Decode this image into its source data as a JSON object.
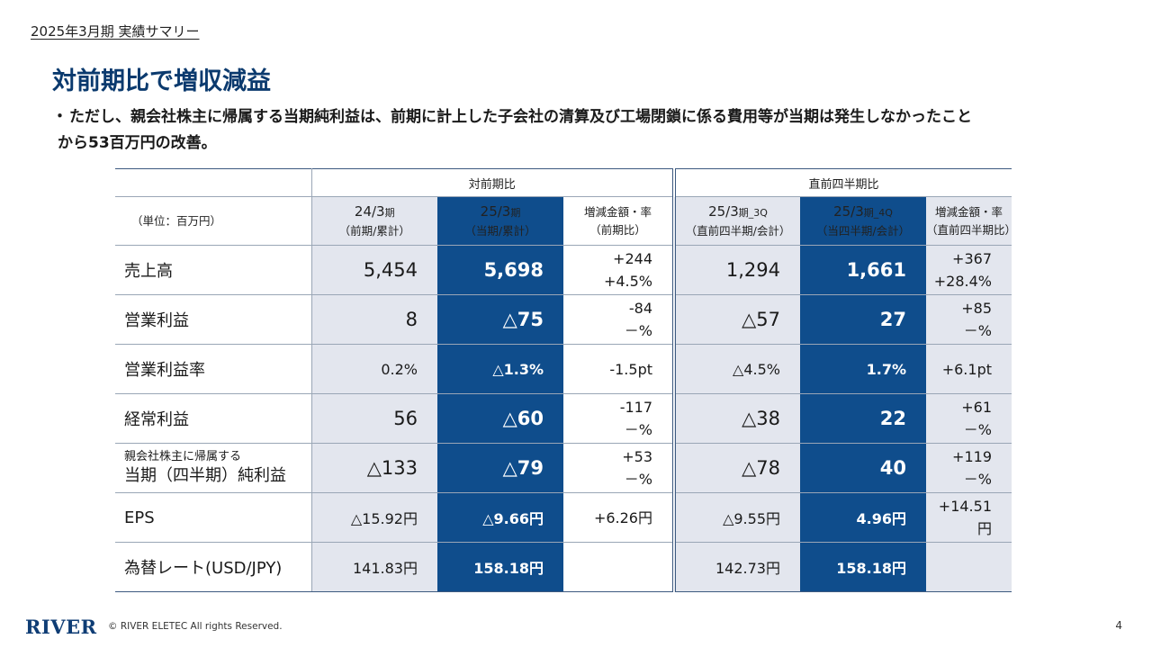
{
  "breadcrumb": "2025年3月期 実績サマリー",
  "title": "対前期比で増収減益",
  "bullet": {
    "dot": "・",
    "line1": "ただし、親会社株主に帰属する当期純利益は、前期に計上した子会社の清算及び工場閉鎖に係る費用等が当期は発生しなかったこと",
    "line2": "から53百万円の改善。"
  },
  "table": {
    "groups": {
      "yoy": "対前期比",
      "qoq": "直前四半期比"
    },
    "unit": "（単位：百万円）",
    "headers": [
      {
        "main": "24/3",
        "suffix": "期",
        "sub": "（前期/累計）"
      },
      {
        "main": "25/3",
        "suffix": "期",
        "sub": "（当期/累計）"
      },
      {
        "main": "増減金額・率",
        "suffix": "",
        "sub": "（前期比）"
      },
      {
        "main": "25/3",
        "suffix": "期_3Q",
        "sub": "（直前四半期/会計）"
      },
      {
        "main": "25/3",
        "suffix": "期_4Q",
        "sub": "（当四半期/会計）"
      },
      {
        "main": "増減金額・率",
        "suffix": "",
        "sub": "（直前四半期比）"
      }
    ],
    "rows": [
      {
        "label": "売上高",
        "prev": "5,454",
        "curr": "5,698",
        "yoy_amt": "+244",
        "yoy_rate": "+4.5%",
        "q3": "1,294",
        "q4": "1,661",
        "qoq_amt": "+367",
        "qoq_rate": "+28.4%"
      },
      {
        "label": "営業利益",
        "prev": "8",
        "curr": "△75",
        "yoy_amt": "-84",
        "yoy_rate": "－%",
        "q3": "△57",
        "q4": "27",
        "qoq_amt": "+85",
        "qoq_rate": "－%"
      },
      {
        "label": "営業利益率",
        "prev": "0.2%",
        "curr": "△1.3%",
        "yoy_single": "-1.5pt",
        "q3": "△4.5%",
        "q4": "1.7%",
        "qoq_single": "+6.1pt"
      },
      {
        "label": "経常利益",
        "prev": "56",
        "curr": "△60",
        "yoy_amt": "-117",
        "yoy_rate": "－%",
        "q3": "△38",
        "q4": "22",
        "qoq_amt": "+61",
        "qoq_rate": "－%"
      },
      {
        "label_l1": "親会社株主に帰属する",
        "label_l2": "当期（四半期）純利益",
        "prev": "△133",
        "curr": "△79",
        "yoy_amt": "+53",
        "yoy_rate": "－%",
        "q3": "△78",
        "q4": "40",
        "qoq_amt": "+119",
        "qoq_rate": "－%"
      },
      {
        "label": "EPS",
        "prev": "△15.92円",
        "curr": "△9.66円",
        "yoy_single": "+6.26円",
        "q3": "△9.55円",
        "q4": "4.96円",
        "qoq_single": "+14.51円"
      },
      {
        "label": "為替レート(USD/JPY)",
        "prev": "141.83円",
        "curr": "158.18円",
        "yoy_single": "",
        "q3": "142.73円",
        "q4": "158.18円",
        "qoq_single": ""
      }
    ]
  },
  "footer": {
    "logo": "RIVER",
    "copyright": "© RIVER ELETEC All rights Reserved.",
    "page": "4"
  },
  "colors": {
    "title": "#0b3a6e",
    "highlight": "#0f4d8c",
    "shade": "#e3e6ee"
  }
}
